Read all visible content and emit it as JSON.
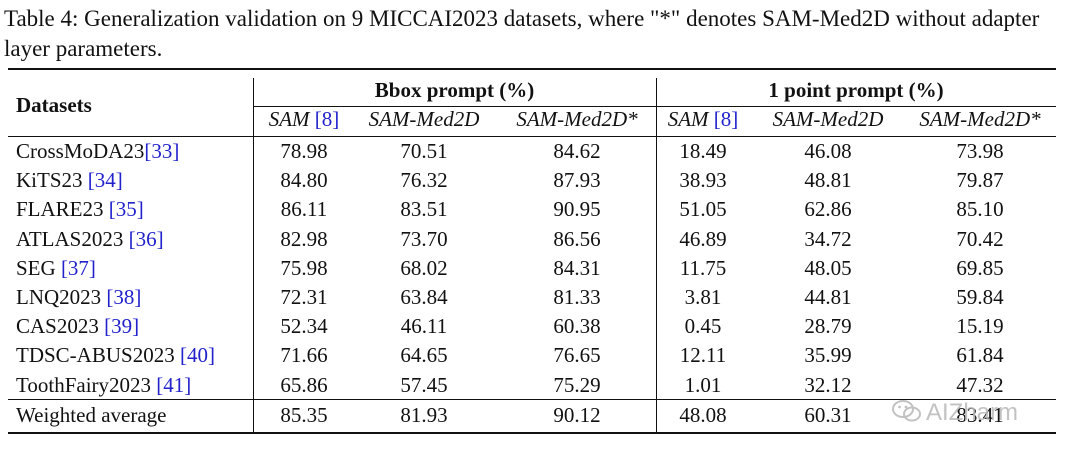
{
  "caption": "Table 4: Generalization validation on 9 MICCAI2023 datasets, where \"*\" denotes SAM-Med2D without adapter layer parameters.",
  "header": {
    "datasets": "Datasets",
    "group1": "Bbox prompt (%)",
    "group2": "1 point prompt (%)",
    "sub": [
      {
        "name": "SAM ",
        "ref": "[8]"
      },
      {
        "name": "SAM-Med2D",
        "ref": ""
      },
      {
        "name": "SAM-Med2D*",
        "ref": ""
      },
      {
        "name": "SAM ",
        "ref": "[8]"
      },
      {
        "name": "SAM-Med2D",
        "ref": ""
      },
      {
        "name": "SAM-Med2D*",
        "ref": ""
      }
    ]
  },
  "rows": [
    {
      "name": "CrossMoDA23",
      "ref": "[33]",
      "values": [
        "78.98",
        "70.51",
        "84.62",
        "18.49",
        "46.08",
        "73.98"
      ]
    },
    {
      "name": "KiTS23 ",
      "ref": "[34]",
      "values": [
        "84.80",
        "76.32",
        "87.93",
        "38.93",
        "48.81",
        "79.87"
      ]
    },
    {
      "name": "FLARE23 ",
      "ref": "[35]",
      "values": [
        "86.11",
        "83.51",
        "90.95",
        "51.05",
        "62.86",
        "85.10"
      ]
    },
    {
      "name": "ATLAS2023 ",
      "ref": "[36]",
      "values": [
        "82.98",
        "73.70",
        "86.56",
        "46.89",
        "34.72",
        "70.42"
      ]
    },
    {
      "name": "SEG ",
      "ref": "[37]",
      "values": [
        "75.98",
        "68.02",
        "84.31",
        "11.75",
        "48.05",
        "69.85"
      ]
    },
    {
      "name": "LNQ2023 ",
      "ref": "[38]",
      "values": [
        "72.31",
        "63.84",
        "81.33",
        "3.81",
        "44.81",
        "59.84"
      ]
    },
    {
      "name": "CAS2023 ",
      "ref": "[39]",
      "values": [
        "52.34",
        "46.11",
        "60.38",
        "0.45",
        "28.79",
        "15.19"
      ]
    },
    {
      "name": "TDSC-ABUS2023 ",
      "ref": "[40]",
      "values": [
        "71.66",
        "64.65",
        "76.65",
        "12.11",
        "35.99",
        "61.84"
      ]
    },
    {
      "name": "ToothFairy2023 ",
      "ref": "[41]",
      "values": [
        "65.86",
        "57.45",
        "75.29",
        "1.01",
        "32.12",
        "47.32"
      ]
    }
  ],
  "average": {
    "name": "Weighted average",
    "values": [
      "85.35",
      "81.93",
      "90.12",
      "48.08",
      "60.31",
      "83.41"
    ]
  },
  "watermark": {
    "text": "AIZharm",
    "icon": "wechat-icon"
  },
  "colors": {
    "ref_link": "#2222cc",
    "watermark": "#b8b8b8"
  }
}
